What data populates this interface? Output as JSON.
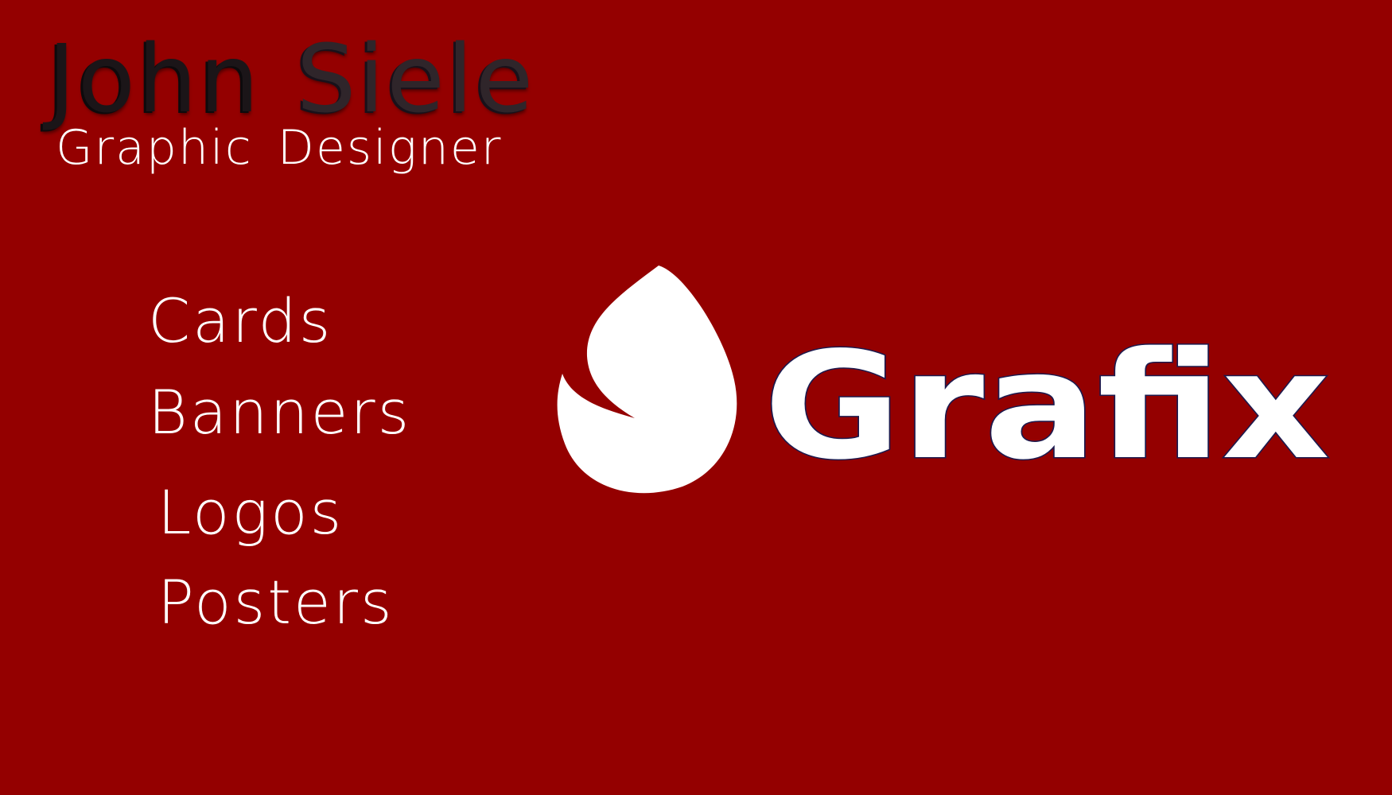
{
  "colors": {
    "background": "#940000",
    "text": "#ffffff",
    "name_first": "#1b1518",
    "name_last": "#2f252a",
    "logo": "#ffffff",
    "logo_outline": "#1c1a4e"
  },
  "card": {
    "first_name": "John",
    "last_name": "Siele",
    "title": "Graphic Designer",
    "services": [
      "Cards",
      "Banners",
      "Logos",
      "Posters"
    ]
  },
  "brand": {
    "mark_icon": "drop-swirl-icon",
    "wordmark": "Grafix"
  }
}
